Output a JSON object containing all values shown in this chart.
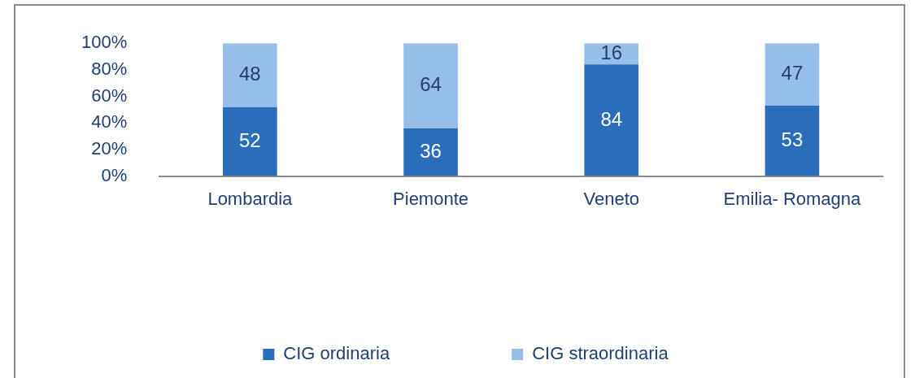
{
  "chart_data": {
    "type": "bar",
    "stacked": true,
    "categories": [
      "Lombardia",
      "Piemonte",
      "Veneto",
      "Emilia- Romagna"
    ],
    "series": [
      {
        "name": "CIG ordinaria",
        "color": "#2a6ebb",
        "values": [
          52,
          36,
          84,
          53
        ]
      },
      {
        "name": "CIG straordinaria",
        "color": "#95bfe8",
        "values": [
          48,
          64,
          16,
          47
        ]
      }
    ],
    "ylim": [
      0,
      100
    ],
    "yticks": [
      {
        "value": 0,
        "label": "0%"
      },
      {
        "value": 20,
        "label": "20%"
      },
      {
        "value": 40,
        "label": "40%"
      },
      {
        "value": 60,
        "label": "60%"
      },
      {
        "value": 80,
        "label": "80%"
      },
      {
        "value": 100,
        "label": "100%"
      }
    ],
    "grid": false,
    "legend": "bottom",
    "data_labels": true
  }
}
